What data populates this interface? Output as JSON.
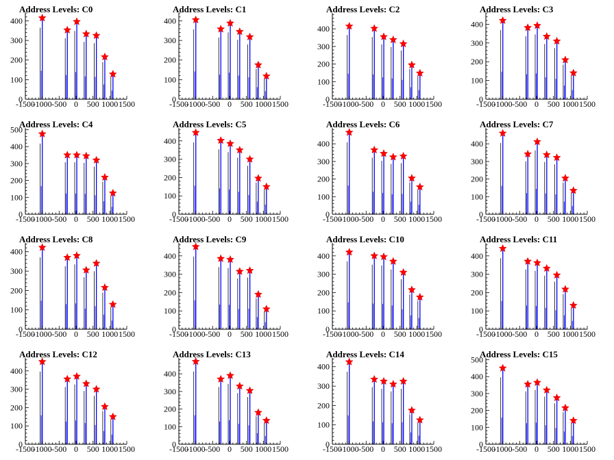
{
  "chart_data": [
    {
      "type": "bar",
      "title": "Address Levels: C0",
      "xlim": [
        -1500,
        1500
      ],
      "ylim": [
        0,
        440
      ],
      "yticks": [
        0,
        100,
        200,
        300,
        400
      ],
      "xticks": [
        -1500,
        -1000,
        -500,
        0,
        500,
        1000,
        1500
      ],
      "xtick_labels": [
        "-1500",
        "-1000",
        "-500",
        "0",
        "500",
        "1000",
        "1500"
      ],
      "peaks": [
        {
          "x": -1000,
          "y": 415
        },
        {
          "x": -260,
          "y": 353
        },
        {
          "x": 20,
          "y": 396
        },
        {
          "x": 300,
          "y": 333
        },
        {
          "x": 600,
          "y": 325
        },
        {
          "x": 850,
          "y": 216
        },
        {
          "x": 1090,
          "y": 128
        }
      ]
    },
    {
      "type": "bar",
      "title": "Address Levels: C1",
      "xlim": [
        -1500,
        1500
      ],
      "ylim": [
        0,
        440
      ],
      "yticks": [
        0,
        100,
        200,
        300,
        400
      ],
      "xticks": [
        -1500,
        -1000,
        -500,
        0,
        500,
        1000,
        1500
      ],
      "xtick_labels": [
        "-1500",
        "-1000",
        "-500",
        "0",
        "500",
        "1000",
        "1500"
      ],
      "peaks": [
        {
          "x": -1000,
          "y": 405
        },
        {
          "x": -260,
          "y": 358
        },
        {
          "x": 20,
          "y": 388
        },
        {
          "x": 300,
          "y": 345
        },
        {
          "x": 600,
          "y": 318
        },
        {
          "x": 850,
          "y": 175
        },
        {
          "x": 1090,
          "y": 118
        }
      ]
    },
    {
      "type": "bar",
      "title": "Address Levels: C2",
      "xlim": [
        -1500,
        1500
      ],
      "ylim": [
        0,
        490
      ],
      "yticks": [
        0,
        100,
        200,
        300,
        400
      ],
      "xticks": [
        -1500,
        -1000,
        -500,
        0,
        500,
        1000,
        1500
      ],
      "xtick_labels": [
        "-1500",
        "-1000",
        "-500",
        "0",
        "500",
        "1000",
        "1500"
      ],
      "peaks": [
        {
          "x": -1000,
          "y": 415
        },
        {
          "x": -260,
          "y": 402
        },
        {
          "x": 20,
          "y": 355
        },
        {
          "x": 300,
          "y": 338
        },
        {
          "x": 600,
          "y": 315
        },
        {
          "x": 850,
          "y": 195
        },
        {
          "x": 1090,
          "y": 148
        }
      ]
    },
    {
      "type": "bar",
      "title": "Address Levels: C3",
      "xlim": [
        -1500,
        1500
      ],
      "ylim": [
        0,
        460
      ],
      "yticks": [
        0,
        100,
        200,
        300,
        400
      ],
      "xticks": [
        -1500,
        -1000,
        -500,
        0,
        500,
        1000,
        1500
      ],
      "xtick_labels": [
        "-1500",
        "-1000",
        "-500",
        "0",
        "500",
        "1000",
        "1500"
      ],
      "peaks": [
        {
          "x": -1000,
          "y": 420
        },
        {
          "x": -260,
          "y": 382
        },
        {
          "x": 20,
          "y": 393
        },
        {
          "x": 300,
          "y": 335
        },
        {
          "x": 600,
          "y": 310
        },
        {
          "x": 850,
          "y": 210
        },
        {
          "x": 1090,
          "y": 140
        }
      ]
    },
    {
      "type": "bar",
      "title": "Address Levels: C4",
      "xlim": [
        -1500,
        1500
      ],
      "ylim": [
        0,
        510
      ],
      "yticks": [
        0,
        100,
        200,
        300,
        400,
        500
      ],
      "xticks": [
        -1500,
        -1000,
        -500,
        0,
        500,
        1000,
        1500
      ],
      "xtick_labels": [
        "-1500",
        "-1000",
        "-500",
        "0",
        "500",
        "1000",
        "1500"
      ],
      "peaks": [
        {
          "x": -1000,
          "y": 475
        },
        {
          "x": -260,
          "y": 350
        },
        {
          "x": 20,
          "y": 350
        },
        {
          "x": 300,
          "y": 345
        },
        {
          "x": 600,
          "y": 320
        },
        {
          "x": 850,
          "y": 218
        },
        {
          "x": 1090,
          "y": 125
        }
      ]
    },
    {
      "type": "bar",
      "title": "Address Levels: C5",
      "xlim": [
        -1500,
        1500
      ],
      "ylim": [
        0,
        470
      ],
      "yticks": [
        0,
        100,
        200,
        300,
        400
      ],
      "xticks": [
        -1500,
        -1000,
        -500,
        0,
        500,
        1000,
        1500
      ],
      "xtick_labels": [
        "-1500",
        "-1000",
        "-500",
        "0",
        "500",
        "1000",
        "1500"
      ],
      "peaks": [
        {
          "x": -1000,
          "y": 445
        },
        {
          "x": -260,
          "y": 402
        },
        {
          "x": 20,
          "y": 385
        },
        {
          "x": 300,
          "y": 350
        },
        {
          "x": 600,
          "y": 300
        },
        {
          "x": 850,
          "y": 196
        },
        {
          "x": 1090,
          "y": 150
        }
      ]
    },
    {
      "type": "bar",
      "title": "Address Levels: C6",
      "xlim": [
        -1500,
        1500
      ],
      "ylim": [
        0,
        490
      ],
      "yticks": [
        0,
        100,
        200,
        300,
        400
      ],
      "xticks": [
        -1500,
        -1000,
        -500,
        0,
        500,
        1000,
        1500
      ],
      "xtick_labels": [
        "-1500",
        "-1000",
        "-500",
        "0",
        "500",
        "1000",
        "1500"
      ],
      "peaks": [
        {
          "x": -1000,
          "y": 465
        },
        {
          "x": -260,
          "y": 365
        },
        {
          "x": 20,
          "y": 345
        },
        {
          "x": 300,
          "y": 325
        },
        {
          "x": 600,
          "y": 330
        },
        {
          "x": 850,
          "y": 205
        },
        {
          "x": 1090,
          "y": 155
        }
      ]
    },
    {
      "type": "bar",
      "title": "Address Levels: C7",
      "xlim": [
        -1500,
        1500
      ],
      "ylim": [
        0,
        490
      ],
      "yticks": [
        0,
        100,
        200,
        300,
        400
      ],
      "xticks": [
        -1500,
        -1000,
        -500,
        0,
        500,
        1000,
        1500
      ],
      "xtick_labels": [
        "-1500",
        "-1000",
        "-500",
        "0",
        "500",
        "1000",
        "1500"
      ],
      "peaks": [
        {
          "x": -1000,
          "y": 460
        },
        {
          "x": -260,
          "y": 342
        },
        {
          "x": 20,
          "y": 412
        },
        {
          "x": 300,
          "y": 338
        },
        {
          "x": 600,
          "y": 322
        },
        {
          "x": 850,
          "y": 205
        },
        {
          "x": 1090,
          "y": 135
        }
      ]
    },
    {
      "type": "bar",
      "title": "Address Levels: C8",
      "xlim": [
        -1500,
        1500
      ],
      "ylim": [
        0,
        445
      ],
      "yticks": [
        0,
        100,
        200,
        300,
        400
      ],
      "xticks": [
        -1500,
        -1000,
        -500,
        0,
        500,
        1000,
        1500
      ],
      "xtick_labels": [
        "-1500",
        "-1000",
        "-500",
        "0",
        "500",
        "1000",
        "1500"
      ],
      "peaks": [
        {
          "x": -1000,
          "y": 422
        },
        {
          "x": -260,
          "y": 370
        },
        {
          "x": 20,
          "y": 380
        },
        {
          "x": 300,
          "y": 305
        },
        {
          "x": 600,
          "y": 340
        },
        {
          "x": 850,
          "y": 215
        },
        {
          "x": 1090,
          "y": 128
        }
      ]
    },
    {
      "type": "bar",
      "title": "Address Levels: C9",
      "xlim": [
        -1500,
        1500
      ],
      "ylim": [
        0,
        470
      ],
      "yticks": [
        0,
        100,
        200,
        300,
        400
      ],
      "xticks": [
        -1500,
        -1000,
        -500,
        0,
        500,
        1000,
        1500
      ],
      "xtick_labels": [
        "-1500",
        "-1000",
        "-500",
        "0",
        "500",
        "1000",
        "1500"
      ],
      "peaks": [
        {
          "x": -1000,
          "y": 450
        },
        {
          "x": -260,
          "y": 385
        },
        {
          "x": 20,
          "y": 380
        },
        {
          "x": 300,
          "y": 315
        },
        {
          "x": 600,
          "y": 320
        },
        {
          "x": 850,
          "y": 190
        },
        {
          "x": 1090,
          "y": 110
        }
      ]
    },
    {
      "type": "bar",
      "title": "Address Levels: C10",
      "xlim": [
        -1500,
        1500
      ],
      "ylim": [
        0,
        470
      ],
      "yticks": [
        0,
        100,
        200,
        300,
        400
      ],
      "xticks": [
        -1500,
        -1000,
        -500,
        0,
        500,
        1000,
        1500
      ],
      "xtick_labels": [
        "-1500",
        "-1000",
        "-500",
        "0",
        "500",
        "1000",
        "1500"
      ],
      "peaks": [
        {
          "x": -1000,
          "y": 420
        },
        {
          "x": -260,
          "y": 400
        },
        {
          "x": 20,
          "y": 395
        },
        {
          "x": 300,
          "y": 370
        },
        {
          "x": 600,
          "y": 310
        },
        {
          "x": 850,
          "y": 215
        },
        {
          "x": 1090,
          "y": 175
        }
      ]
    },
    {
      "type": "bar",
      "title": "Address Levels: C11",
      "xlim": [
        -1500,
        1500
      ],
      "ylim": [
        0,
        470
      ],
      "yticks": [
        0,
        100,
        200,
        300,
        400
      ],
      "xticks": [
        -1500,
        -1000,
        -500,
        0,
        500,
        1000,
        1500
      ],
      "xtick_labels": [
        "-1500",
        "-1000",
        "-500",
        "0",
        "500",
        "1000",
        "1500"
      ],
      "peaks": [
        {
          "x": -1000,
          "y": 440
        },
        {
          "x": -260,
          "y": 370
        },
        {
          "x": 20,
          "y": 362
        },
        {
          "x": 300,
          "y": 332
        },
        {
          "x": 600,
          "y": 295
        },
        {
          "x": 850,
          "y": 218
        },
        {
          "x": 1090,
          "y": 130
        }
      ]
    },
    {
      "type": "bar",
      "title": "Address Levels: C12",
      "xlim": [
        -1500,
        1500
      ],
      "ylim": [
        0,
        470
      ],
      "yticks": [
        0,
        100,
        200,
        300,
        400
      ],
      "xticks": [
        -1500,
        -1000,
        -500,
        0,
        500,
        1000,
        1500
      ],
      "xtick_labels": [
        "-1500",
        "-1000",
        "-500",
        "0",
        "500",
        "1000",
        "1500"
      ],
      "peaks": [
        {
          "x": -1000,
          "y": 450
        },
        {
          "x": -260,
          "y": 355
        },
        {
          "x": 20,
          "y": 370
        },
        {
          "x": 300,
          "y": 330
        },
        {
          "x": 600,
          "y": 300
        },
        {
          "x": 850,
          "y": 205
        },
        {
          "x": 1090,
          "y": 150
        }
      ]
    },
    {
      "type": "bar",
      "title": "Address Levels: C13",
      "xlim": [
        -1500,
        1500
      ],
      "ylim": [
        0,
        490
      ],
      "yticks": [
        0,
        100,
        200,
        300,
        400
      ],
      "xticks": [
        -1500,
        -1000,
        -500,
        0,
        500,
        1000,
        1500
      ],
      "xtick_labels": [
        "-1500",
        "-1000",
        "-500",
        "0",
        "500",
        "1000",
        "1500"
      ],
      "peaks": [
        {
          "x": -1000,
          "y": 470
        },
        {
          "x": -260,
          "y": 370
        },
        {
          "x": 20,
          "y": 390
        },
        {
          "x": 300,
          "y": 330
        },
        {
          "x": 600,
          "y": 305
        },
        {
          "x": 850,
          "y": 180
        },
        {
          "x": 1090,
          "y": 135
        }
      ]
    },
    {
      "type": "bar",
      "title": "Address Levels: C14",
      "xlim": [
        -1500,
        1500
      ],
      "ylim": [
        0,
        445
      ],
      "yticks": [
        0,
        100,
        200,
        300,
        400
      ],
      "xticks": [
        -1500,
        -1000,
        -500,
        0,
        500,
        1000,
        1500
      ],
      "xtick_labels": [
        "-1500",
        "-1000",
        "-500",
        "0",
        "500",
        "1000",
        "1500"
      ],
      "peaks": [
        {
          "x": -1000,
          "y": 425
        },
        {
          "x": -260,
          "y": 335
        },
        {
          "x": 20,
          "y": 325
        },
        {
          "x": 300,
          "y": 310
        },
        {
          "x": 600,
          "y": 325
        },
        {
          "x": 850,
          "y": 175
        },
        {
          "x": 1090,
          "y": 125
        }
      ]
    },
    {
      "type": "bar",
      "title": "Address Levels: C15",
      "xlim": [
        -1500,
        1500
      ],
      "ylim": [
        0,
        510
      ],
      "yticks": [
        0,
        100,
        200,
        300,
        400,
        500
      ],
      "xticks": [
        -1500,
        -1000,
        -500,
        0,
        500,
        1000,
        1500
      ],
      "xtick_labels": [
        "-1500",
        "-1000",
        "-500",
        "0",
        "500",
        "1000",
        "1500"
      ],
      "peaks": [
        {
          "x": -1000,
          "y": 450
        },
        {
          "x": -260,
          "y": 355
        },
        {
          "x": 20,
          "y": 365
        },
        {
          "x": 300,
          "y": 320
        },
        {
          "x": 600,
          "y": 275
        },
        {
          "x": 850,
          "y": 215
        },
        {
          "x": 1090,
          "y": 140
        }
      ]
    }
  ],
  "colors": {
    "bar": "#0000ff",
    "outline": "#000000",
    "marker": "#ff0000",
    "axis": "#000000",
    "background": "#ffffff"
  }
}
